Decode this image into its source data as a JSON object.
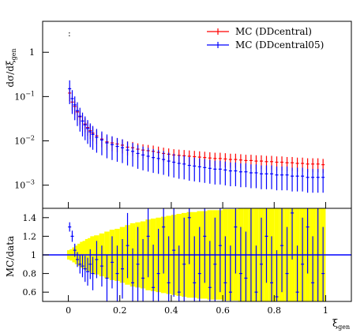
{
  "chart_data": {
    "type": "scatter",
    "panels": [
      {
        "name": "distribution",
        "ylabel": "dσ/dξ",
        "ylabel_sub": "gen",
        "yscale": "log",
        "ylim": [
          0.0003,
          5
        ],
        "xlim": [
          -0.1,
          1.1
        ],
        "yticks": [
          {
            "value": 0.001,
            "base": "10",
            "exp": "−3"
          },
          {
            "value": 0.01,
            "base": "10",
            "exp": "−2"
          },
          {
            "value": 0.1,
            "base": "10",
            "exp": "−1"
          },
          {
            "value": 1,
            "base": "1",
            "exp": ""
          }
        ],
        "legend_position": "top-right",
        "series": [
          {
            "name": "MC (DDcentral)",
            "color": "#ff0000"
          },
          {
            "name": "MC (DDcentral05)",
            "color": "#0000ff"
          }
        ],
        "x": [
          0.005,
          0.015,
          0.025,
          0.035,
          0.045,
          0.055,
          0.065,
          0.075,
          0.085,
          0.095,
          0.11,
          0.13,
          0.15,
          0.17,
          0.19,
          0.21,
          0.23,
          0.25,
          0.27,
          0.29,
          0.31,
          0.33,
          0.35,
          0.37,
          0.39,
          0.41,
          0.43,
          0.45,
          0.47,
          0.49,
          0.51,
          0.53,
          0.55,
          0.57,
          0.59,
          0.61,
          0.63,
          0.65,
          0.67,
          0.69,
          0.71,
          0.73,
          0.75,
          0.77,
          0.79,
          0.81,
          0.83,
          0.85,
          0.87,
          0.89,
          0.91,
          0.93,
          0.95,
          0.97,
          0.99
        ],
        "ddcentral": [
          0.12,
          0.075,
          0.06,
          0.045,
          0.035,
          0.028,
          0.024,
          0.02,
          0.017,
          0.015,
          0.013,
          0.011,
          0.0095,
          0.009,
          0.0085,
          0.008,
          0.0072,
          0.007,
          0.0065,
          0.0062,
          0.006,
          0.0058,
          0.0055,
          0.0052,
          0.005,
          0.0048,
          0.0047,
          0.0046,
          0.0045,
          0.0044,
          0.0043,
          0.0042,
          0.0041,
          0.004,
          0.004,
          0.0039,
          0.0038,
          0.0038,
          0.0037,
          0.0036,
          0.0036,
          0.0035,
          0.0035,
          0.0034,
          0.0034,
          0.0033,
          0.0033,
          0.0032,
          0.0032,
          0.0031,
          0.0031,
          0.003,
          0.003,
          0.003,
          0.0029
        ],
        "ddcentral05": [
          0.15,
          0.09,
          0.065,
          0.048,
          0.036,
          0.028,
          0.023,
          0.019,
          0.016,
          0.014,
          0.012,
          0.0105,
          0.009,
          0.0082,
          0.0075,
          0.007,
          0.0062,
          0.0058,
          0.0052,
          0.0048,
          0.0045,
          0.0042,
          0.004,
          0.0038,
          0.0035,
          0.0033,
          0.0031,
          0.003,
          0.0028,
          0.0027,
          0.0026,
          0.0025,
          0.0024,
          0.0023,
          0.0023,
          0.0022,
          0.0021,
          0.0021,
          0.002,
          0.002,
          0.0019,
          0.0019,
          0.0018,
          0.0018,
          0.0018,
          0.0017,
          0.0017,
          0.0017,
          0.0016,
          0.0016,
          0.0016,
          0.0015,
          0.0015,
          0.0015,
          0.0015
        ]
      },
      {
        "name": "ratio",
        "ylabel": "MC/data",
        "ylim": [
          0.5,
          1.5
        ],
        "xlim": [
          -0.1,
          1.1
        ],
        "yticks": [
          0.6,
          0.8,
          1.0,
          1.2,
          1.4
        ],
        "ytick_labels": [
          "0.6",
          "0.8",
          "1",
          "1.2",
          "1.4"
        ],
        "band_color": "#ffff00",
        "ratio_color": "#0000ff",
        "x": [
          0.005,
          0.015,
          0.025,
          0.035,
          0.045,
          0.055,
          0.065,
          0.075,
          0.085,
          0.095,
          0.11,
          0.13,
          0.15,
          0.17,
          0.19,
          0.21,
          0.23,
          0.25,
          0.27,
          0.29,
          0.31,
          0.33,
          0.35,
          0.37,
          0.39,
          0.41,
          0.43,
          0.45,
          0.47,
          0.49,
          0.51,
          0.53,
          0.55,
          0.57,
          0.59,
          0.61,
          0.63,
          0.65,
          0.67,
          0.69,
          0.71,
          0.73,
          0.75,
          0.77,
          0.79,
          0.81,
          0.83,
          0.85,
          0.87,
          0.89,
          0.91,
          0.93,
          0.95,
          0.97,
          0.99
        ],
        "band_halfwidth": [
          0.05,
          0.06,
          0.08,
          0.1,
          0.12,
          0.14,
          0.15,
          0.17,
          0.18,
          0.2,
          0.21,
          0.23,
          0.25,
          0.27,
          0.28,
          0.3,
          0.32,
          0.34,
          0.35,
          0.36,
          0.38,
          0.39,
          0.4,
          0.41,
          0.42,
          0.43,
          0.44,
          0.45,
          0.46,
          0.46,
          0.47,
          0.47,
          0.48,
          0.48,
          0.48,
          0.49,
          0.49,
          0.49,
          0.5,
          0.5,
          0.5,
          0.5,
          0.5,
          0.5,
          0.5,
          0.5,
          0.5,
          0.5,
          0.5,
          0.5,
          0.5,
          0.5,
          0.5,
          0.5,
          0.5
        ],
        "ratio_values": [
          1.3,
          1.2,
          1.05,
          0.95,
          0.9,
          0.88,
          0.85,
          0.82,
          0.9,
          0.8,
          0.95,
          0.88,
          0.75,
          0.92,
          0.8,
          0.85,
          1.1,
          0.7,
          0.9,
          0.75,
          1.2,
          0.65,
          0.8,
          1.3,
          0.7,
          1.05,
          0.6,
          0.9,
          1.4,
          0.7,
          0.8,
          1.2,
          0.65,
          0.9,
          1.1,
          0.7,
          0.6,
          1.3,
          0.8,
          0.75,
          1.0,
          0.6,
          0.9,
          1.2,
          0.7,
          0.55,
          1.1,
          0.8,
          1.45,
          0.6,
          0.9,
          1.3,
          0.7,
          1.0,
          0.8
        ],
        "ratio_err": [
          0.05,
          0.06,
          0.07,
          0.08,
          0.1,
          0.12,
          0.14,
          0.15,
          0.16,
          0.18,
          0.2,
          0.22,
          0.25,
          0.28,
          0.3,
          0.32,
          0.35,
          0.37,
          0.4,
          0.42,
          0.44,
          0.46,
          0.48,
          0.5,
          0.5,
          0.5,
          0.5,
          0.5,
          0.5,
          0.5,
          0.5,
          0.5,
          0.5,
          0.5,
          0.5,
          0.5,
          0.5,
          0.5,
          0.5,
          0.5,
          0.5,
          0.5,
          0.5,
          0.5,
          0.5,
          0.5,
          0.5,
          0.5,
          0.5,
          0.5,
          0.5,
          0.5,
          0.5,
          0.5,
          0.5
        ]
      }
    ],
    "xticks": [
      0,
      0.2,
      0.4,
      0.6,
      0.8,
      1
    ],
    "xtick_labels": [
      "0",
      "0.2",
      "0.4",
      "0.6",
      "0.8",
      "1"
    ],
    "xlabel": "ξ",
    "xlabel_sub": "gen"
  }
}
